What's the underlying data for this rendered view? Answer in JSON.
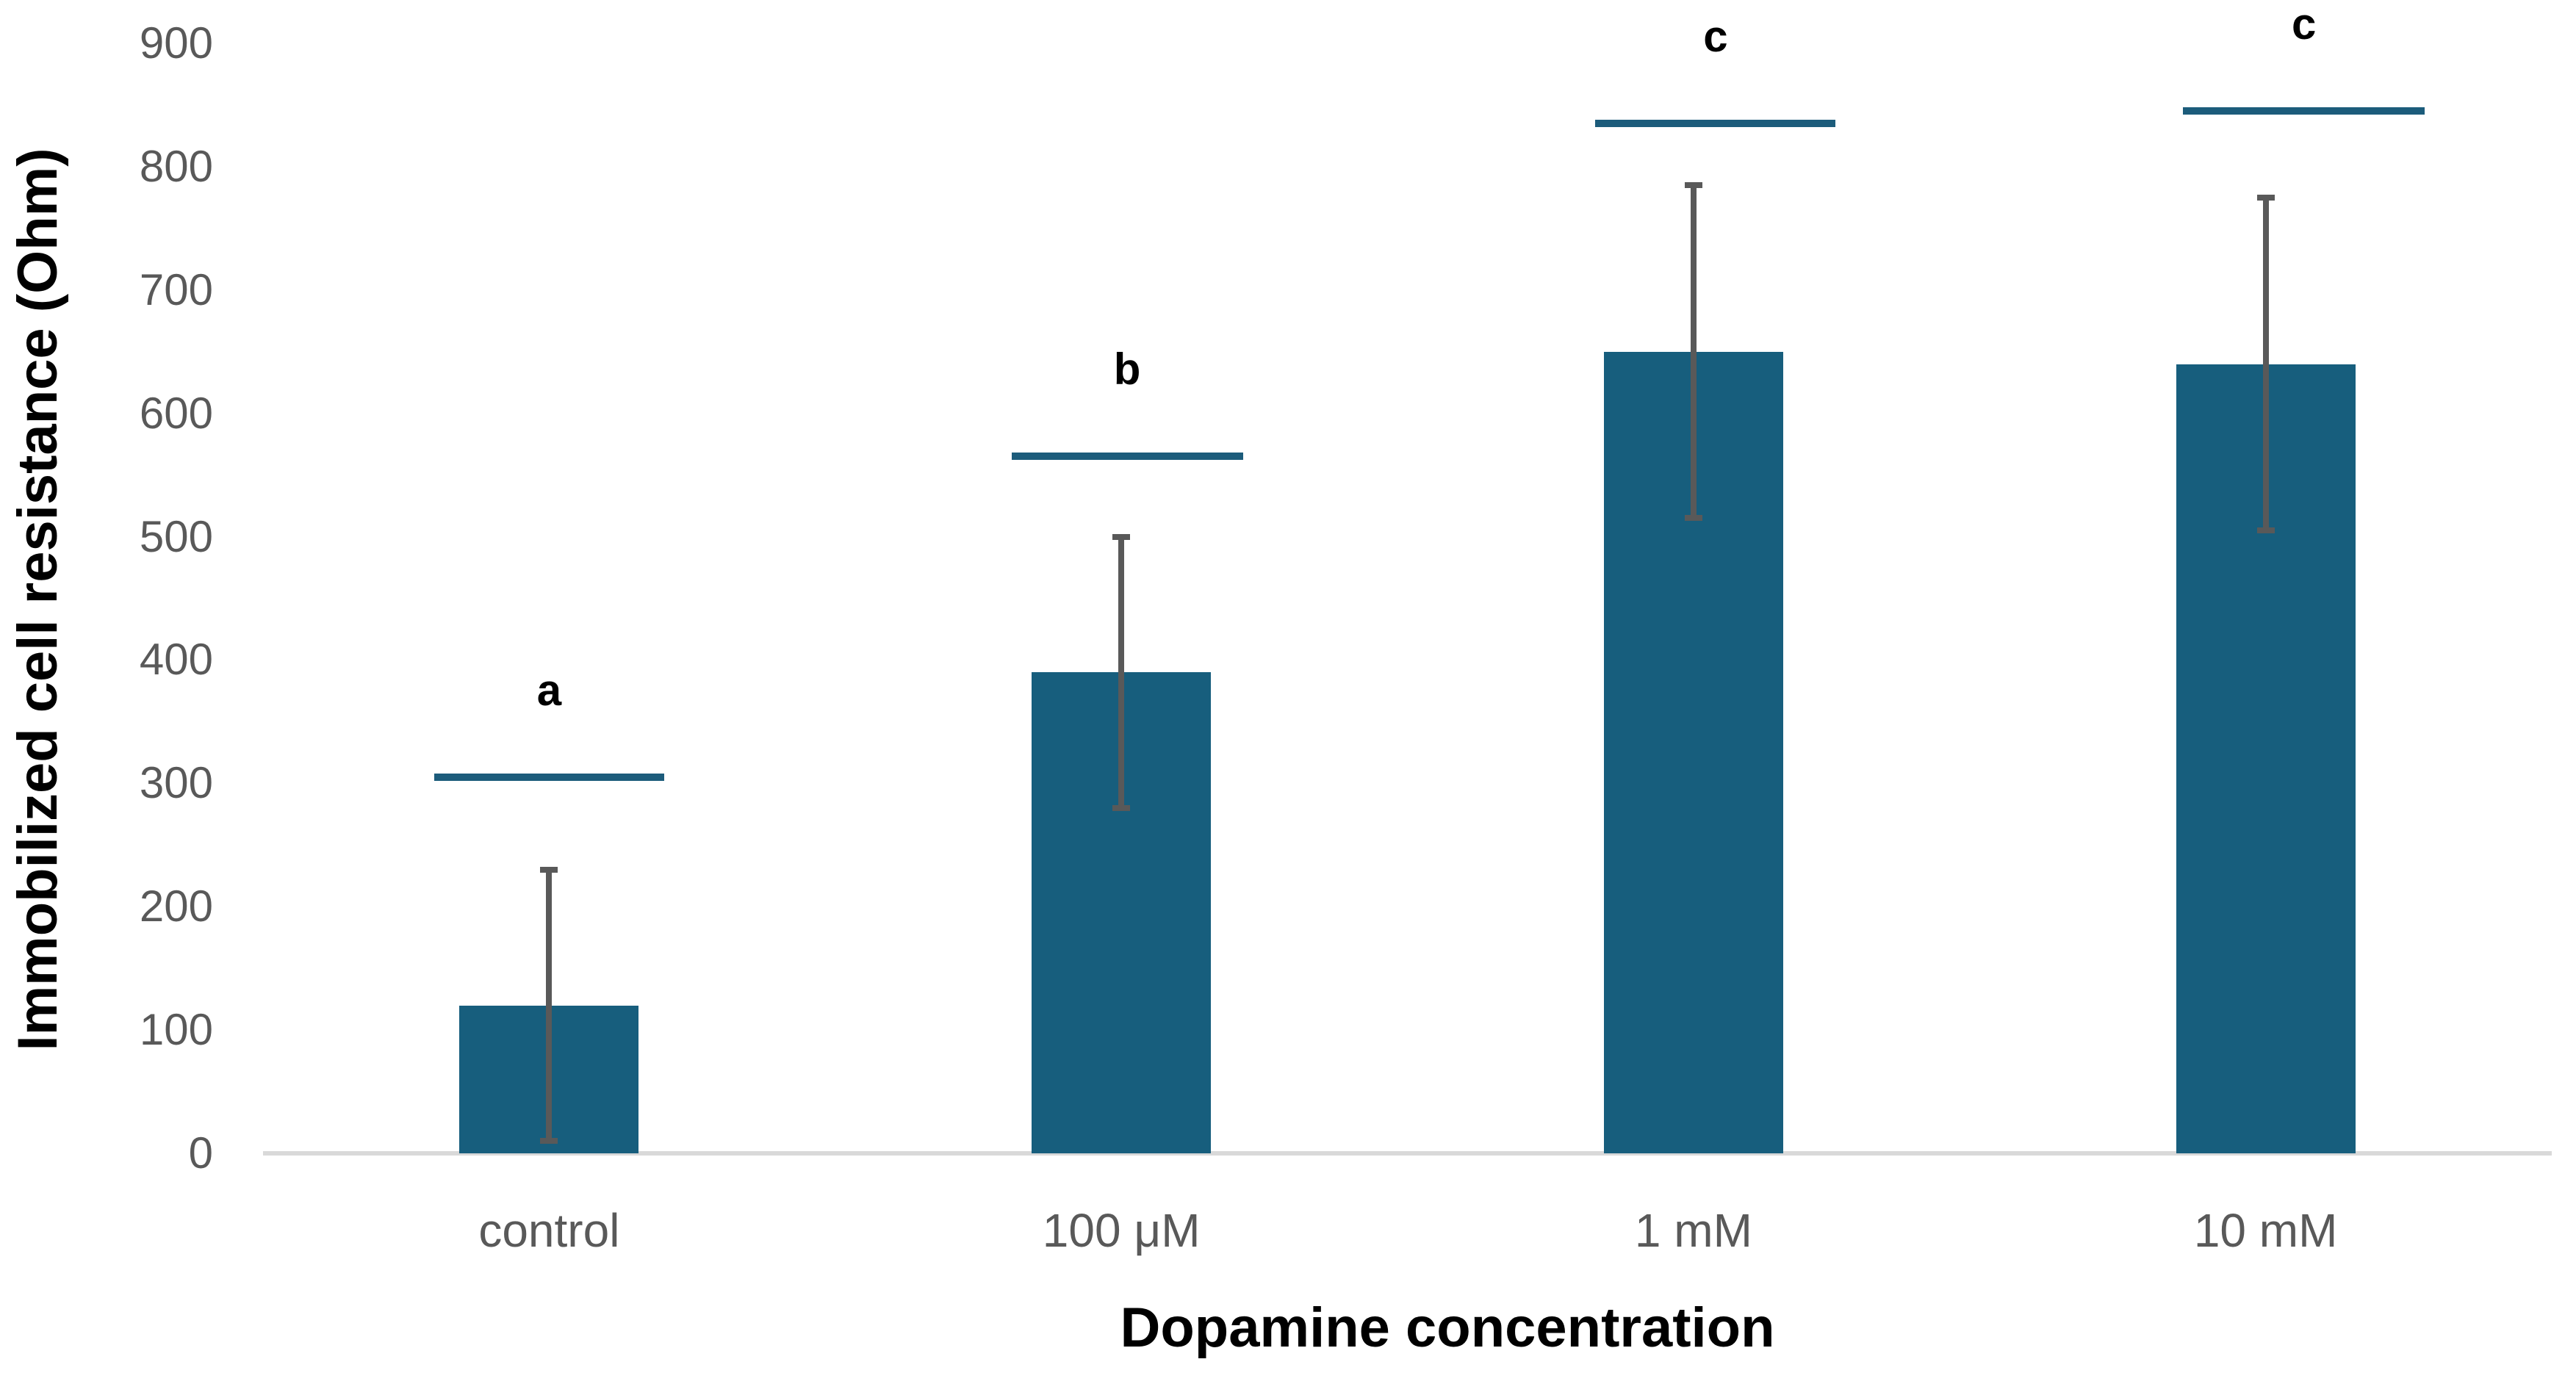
{
  "chart_data": {
    "type": "bar",
    "title": "",
    "xlabel": "Dopamine concentration",
    "ylabel": "Immobilized cell resistance (Ohm)",
    "categories": [
      "control",
      "100 μM",
      "1 mM",
      "10 mM"
    ],
    "values": [
      120,
      390,
      650,
      640
    ],
    "error_bars": [
      110,
      110,
      135,
      135
    ],
    "significance": [
      {
        "label": "a",
        "line_level": 305
      },
      {
        "label": "b",
        "line_level": 565
      },
      {
        "label": "c",
        "line_level": 835
      },
      {
        "label": "c",
        "line_level": 845
      }
    ],
    "y_ticks": [
      0,
      100,
      200,
      300,
      400,
      500,
      600,
      700,
      800,
      900
    ],
    "ylim": [
      0,
      900
    ],
    "grid": false,
    "legend": false,
    "bar_color": "#175e7d",
    "sig_line_color": "#1c5c7b",
    "error_bar_color": "#595959",
    "axis_line_color": "#d9d9d9",
    "tick_label_color": "#595959",
    "title_color": "#000000"
  }
}
